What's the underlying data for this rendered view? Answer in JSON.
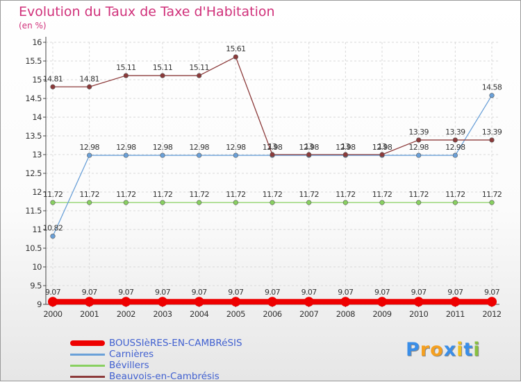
{
  "chart_data": {
    "type": "line",
    "title": "Evolution du Taux de Taxe d'Habitation",
    "ylabel": "(en %)",
    "xlabel": "",
    "categories": [
      "2000",
      "2001",
      "2002",
      "2003",
      "2004",
      "2005",
      "2006",
      "2007",
      "2008",
      "2009",
      "2010",
      "2011",
      "2012"
    ],
    "ylim": [
      9,
      16
    ],
    "yticks": [
      "9",
      "9.5",
      "10",
      "10.5",
      "11",
      "11.5",
      "12",
      "12.5",
      "13",
      "13.5",
      "14",
      "14.5",
      "15",
      "15.5",
      "16"
    ],
    "grid": true,
    "legend_position": "bottom-left",
    "series": [
      {
        "name": "BOUSSIèRES-EN-CAMBRéSIS",
        "color": "#ee0000",
        "values": [
          9.07,
          9.07,
          9.07,
          9.07,
          9.07,
          9.07,
          9.07,
          9.07,
          9.07,
          9.07,
          9.07,
          9.07,
          9.07
        ],
        "labels": [
          "9.07",
          "9.07",
          "9.07",
          "9.07",
          "9.07",
          "9.07",
          "9.07",
          "9.07",
          "9.07",
          "9.07",
          "9.07",
          "9.07",
          "9.07"
        ]
      },
      {
        "name": "Carnières",
        "color": "#6aa0d8",
        "values": [
          10.82,
          12.98,
          12.98,
          12.98,
          12.98,
          12.98,
          12.98,
          12.98,
          12.98,
          12.98,
          12.98,
          12.98,
          14.58
        ],
        "labels": [
          "10.82",
          "12.98",
          "12.98",
          "12.98",
          "12.98",
          "12.98",
          "12.98",
          "12.98",
          "12.98",
          "12.98",
          "12.98",
          "12.98",
          "14.58"
        ]
      },
      {
        "name": "Bévillers",
        "color": "#88d060",
        "values": [
          11.72,
          11.72,
          11.72,
          11.72,
          11.72,
          11.72,
          11.72,
          11.72,
          11.72,
          11.72,
          11.72,
          11.72,
          11.72
        ],
        "labels": [
          "11.72",
          "11.72",
          "11.72",
          "11.72",
          "11.72",
          "11.72",
          "11.72",
          "11.72",
          "11.72",
          "11.72",
          "11.72",
          "11.72",
          "11.72"
        ]
      },
      {
        "name": "Beauvois-en-Cambrésis",
        "color": "#8c3a3a",
        "values": [
          14.81,
          14.81,
          15.11,
          15.11,
          15.11,
          15.61,
          13,
          13,
          13,
          13,
          13.39,
          13.39,
          13.39
        ],
        "labels": [
          "14.81",
          "14.81",
          "15.11",
          "15.11",
          "15.11",
          "15.61",
          "13",
          "13",
          "13",
          "13",
          "13.39",
          "13.39",
          "13.39"
        ]
      }
    ]
  },
  "logo": {
    "letters": [
      "P",
      "r",
      "o",
      "x",
      "i",
      "t",
      "i"
    ]
  }
}
